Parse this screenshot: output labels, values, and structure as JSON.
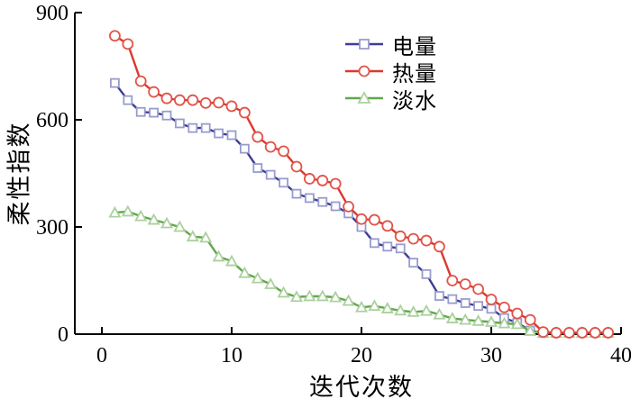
{
  "figure": {
    "background": "#ffffff",
    "axis_color": "#000000"
  },
  "chart_data": {
    "type": "line",
    "title": "",
    "xlabel": "迭代次数",
    "ylabel": "柔性指数",
    "xlim": [
      0,
      40
    ],
    "ylim": [
      0,
      900
    ],
    "xticks": [
      0,
      10,
      20,
      30,
      40
    ],
    "yticks": [
      300,
      600,
      900
    ],
    "grid": false,
    "legend_position": "inside-top-right",
    "x": [
      1,
      2,
      3,
      4,
      5,
      6,
      7,
      8,
      9,
      10,
      11,
      12,
      13,
      14,
      15,
      16,
      17,
      18,
      19,
      20,
      21,
      22,
      23,
      24,
      25,
      26,
      27,
      28,
      29,
      30,
      31,
      32,
      33,
      34,
      35,
      36,
      37,
      38,
      39
    ],
    "series": [
      {
        "name": "电量",
        "marker": "square",
        "color": "#3d3d96",
        "marker_edge": "#989cce",
        "values": [
          703,
          655,
          622,
          620,
          612,
          590,
          577,
          577,
          562,
          557,
          519,
          465,
          446,
          424,
          393,
          381,
          370,
          358,
          338,
          300,
          255,
          245,
          240,
          200,
          168,
          107,
          98,
          87,
          79,
          71,
          45,
          32,
          10,
          3
        ]
      },
      {
        "name": "热量",
        "marker": "circle",
        "color": "#db392d",
        "marker_edge": "#e0544a",
        "values": [
          835,
          812,
          708,
          678,
          660,
          655,
          655,
          647,
          648,
          638,
          620,
          552,
          524,
          512,
          469,
          435,
          430,
          421,
          357,
          322,
          320,
          303,
          274,
          267,
          262,
          245,
          150,
          140,
          126,
          97,
          75,
          58,
          40,
          6,
          4,
          4,
          4,
          4,
          4
        ]
      },
      {
        "name": "淡水",
        "marker": "triangle",
        "color": "#61a74b",
        "marker_edge": "#abd09e",
        "values": [
          340,
          343,
          330,
          320,
          310,
          300,
          273,
          270,
          217,
          204,
          171,
          156,
          140,
          116,
          104,
          106,
          106,
          103,
          93,
          75,
          79,
          72,
          66,
          62,
          65,
          55,
          44,
          40,
          37,
          34,
          30,
          28,
          9,
          4,
          4,
          4,
          4,
          4,
          4
        ]
      }
    ]
  }
}
